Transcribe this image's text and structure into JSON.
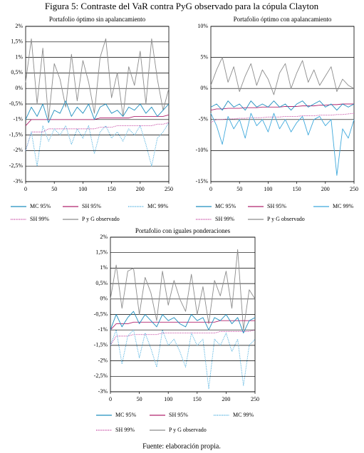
{
  "title": "Figura 5: Contraste del VaR contra PyG observado para la cópula Clayton",
  "source": "Fuente: elaboración propia.",
  "chart_data": [
    {
      "type": "line",
      "title": "Portafolio óptimo sin apalancamiento",
      "grid": true,
      "x": [
        0,
        10,
        20,
        30,
        40,
        50,
        60,
        70,
        80,
        90,
        100,
        110,
        120,
        130,
        140,
        150,
        160,
        170,
        180,
        190,
        200,
        210,
        220,
        230,
        240,
        250
      ],
      "xlim": [
        0,
        250
      ],
      "xticks": [
        0,
        50,
        100,
        150,
        200,
        250
      ],
      "ylim": [
        -3,
        2
      ],
      "yticks": [
        {
          "value": 2,
          "label": "2%"
        },
        {
          "value": 1.5,
          "label": "1,5%"
        },
        {
          "value": 1,
          "label": "1%"
        },
        {
          "value": 0.5,
          "label": "0,5%"
        },
        {
          "value": 0,
          "label": "0%"
        },
        {
          "value": -0.5,
          "label": "-0,5%"
        },
        {
          "value": -1,
          "label": "-1%"
        },
        {
          "value": -1.5,
          "label": "-1,5%"
        },
        {
          "value": -2,
          "label": "-2%"
        },
        {
          "value": -2.5,
          "label": "-2,5%"
        },
        {
          "value": -3,
          "label": "-3%"
        }
      ],
      "series": [
        {
          "name": "MC 95%",
          "color": "#1f8fbf",
          "values": [
            -1.0,
            -0.6,
            -0.9,
            -0.5,
            -1.1,
            -0.7,
            -0.8,
            -0.4,
            -0.9,
            -0.6,
            -0.8,
            -0.5,
            -1.0,
            -0.6,
            -0.5,
            -0.8,
            -0.7,
            -0.9,
            -0.6,
            -0.7,
            -0.5,
            -0.8,
            -0.6,
            -0.9,
            -0.7,
            -0.5
          ]
        },
        {
          "name": "SH 95%",
          "color": "#b0246e",
          "values": [
            -1.2,
            -1.0,
            -1.0,
            -1.0,
            -1.0,
            -1.0,
            -1.0,
            -1.0,
            -1.0,
            -1.0,
            -1.0,
            -1.0,
            -1.0,
            -0.95,
            -0.95,
            -0.95,
            -0.95,
            -0.95,
            -0.95,
            -0.9,
            -0.9,
            -0.9,
            -0.9,
            -0.9,
            -0.9,
            -0.85
          ]
        },
        {
          "name": "MC 99%",
          "color": "#3fa9dc",
          "style": "dotted",
          "values": [
            -2.0,
            -1.4,
            -2.5,
            -1.2,
            -1.7,
            -1.3,
            -1.5,
            -1.2,
            -1.8,
            -1.3,
            -1.6,
            -1.2,
            -2.1,
            -1.4,
            -1.2,
            -1.6,
            -1.4,
            -1.7,
            -1.3,
            -1.5,
            -1.2,
            -1.8,
            -2.5,
            -1.6,
            -1.4,
            -1.1
          ]
        },
        {
          "name": "SH 99%",
          "color": "#c0389a",
          "style": "dotted",
          "values": [
            -2.0,
            -1.4,
            -1.4,
            -1.4,
            -1.3,
            -1.3,
            -1.3,
            -1.3,
            -1.3,
            -1.3,
            -1.3,
            -1.3,
            -1.3,
            -1.25,
            -1.25,
            -1.25,
            -1.2,
            -1.2,
            -1.2,
            -1.2,
            -1.2,
            -1.2,
            -1.2,
            -1.15,
            -1.15,
            -1.1
          ]
        },
        {
          "name": "P y G observado",
          "color": "#8c8c8c",
          "values": [
            0.2,
            1.6,
            -0.5,
            1.3,
            -1.0,
            0.8,
            0.3,
            -0.6,
            1.1,
            -0.4,
            0.9,
            0.2,
            -0.8,
            1.0,
            1.6,
            -0.3,
            0.5,
            -0.9,
            0.7,
            0.1,
            1.2,
            -0.5,
            1.6,
            0.3,
            -0.7,
            0.0
          ]
        }
      ]
    },
    {
      "type": "line",
      "title": "Portafolio óptimo con apalancamiento",
      "grid": true,
      "x": [
        0,
        10,
        20,
        30,
        40,
        50,
        60,
        70,
        80,
        90,
        100,
        110,
        120,
        130,
        140,
        150,
        160,
        170,
        180,
        190,
        200,
        210,
        220,
        230,
        240,
        250
      ],
      "xlim": [
        0,
        250
      ],
      "xticks": [
        0,
        50,
        100,
        150,
        200,
        250
      ],
      "ylim": [
        -15,
        10
      ],
      "yticks": [
        {
          "value": 10,
          "label": "10%"
        },
        {
          "value": 5,
          "label": "5%"
        },
        {
          "value": 0,
          "label": "0%"
        },
        {
          "value": -5,
          "label": "-5%"
        },
        {
          "value": -10,
          "label": "-10%"
        },
        {
          "value": -15,
          "label": "-15%"
        }
      ],
      "series": [
        {
          "name": "MC 95%",
          "color": "#1f8fbf",
          "values": [
            -3.0,
            -2.5,
            -3.5,
            -2.0,
            -3.0,
            -2.5,
            -3.5,
            -2.0,
            -3.0,
            -2.5,
            -3.0,
            -2.0,
            -3.0,
            -2.5,
            -3.5,
            -2.5,
            -2.0,
            -3.0,
            -2.5,
            -2.0,
            -3.0,
            -2.5,
            -3.5,
            -2.5,
            -3.0,
            -2.5
          ]
        },
        {
          "name": "SH 95%",
          "color": "#b0246e",
          "values": [
            -3.5,
            -3.3,
            -3.3,
            -3.2,
            -3.2,
            -3.2,
            -3.1,
            -3.1,
            -3.1,
            -3.0,
            -3.0,
            -3.0,
            -3.0,
            -2.9,
            -2.9,
            -2.9,
            -2.8,
            -2.8,
            -2.8,
            -2.7,
            -2.7,
            -2.6,
            -2.6,
            -2.5,
            -2.5,
            -2.5
          ]
        },
        {
          "name": "MC 99%",
          "color": "#3fa9dc",
          "values": [
            -4.0,
            -6.0,
            -9.0,
            -4.5,
            -6.5,
            -5.0,
            -8.0,
            -4.0,
            -6.0,
            -5.0,
            -7.0,
            -4.0,
            -6.5,
            -5.0,
            -7.0,
            -5.5,
            -4.5,
            -7.5,
            -5.0,
            -4.5,
            -6.0,
            -5.0,
            -14.0,
            -6.5,
            -8.0,
            -5.0
          ]
        },
        {
          "name": "SH 99%",
          "color": "#c0389a",
          "style": "dotted",
          "values": [
            -5.5,
            -5.0,
            -5.0,
            -4.9,
            -4.9,
            -4.8,
            -4.8,
            -4.7,
            -4.7,
            -4.7,
            -4.6,
            -4.6,
            -4.6,
            -4.5,
            -4.5,
            -4.5,
            -4.4,
            -4.4,
            -4.4,
            -4.3,
            -4.3,
            -4.3,
            -4.2,
            -4.2,
            -4.1,
            -4.0
          ]
        },
        {
          "name": "P y G observado",
          "color": "#8c8c8c",
          "values": [
            0.5,
            3.0,
            5.0,
            1.0,
            3.5,
            -0.5,
            2.0,
            4.0,
            0.5,
            3.0,
            1.5,
            -1.0,
            2.5,
            4.0,
            0.0,
            2.5,
            4.5,
            1.0,
            3.0,
            0.5,
            2.0,
            3.5,
            -0.5,
            1.5,
            0.5,
            0.0
          ]
        }
      ]
    },
    {
      "type": "line",
      "title": "Portafolio con iguales ponderaciones",
      "grid": true,
      "x": [
        0,
        10,
        20,
        30,
        40,
        50,
        60,
        70,
        80,
        90,
        100,
        110,
        120,
        130,
        140,
        150,
        160,
        170,
        180,
        190,
        200,
        210,
        220,
        230,
        240,
        250
      ],
      "xlim": [
        0,
        250
      ],
      "xticks": [
        0,
        50,
        100,
        150,
        200,
        250
      ],
      "ylim": [
        -3,
        2
      ],
      "yticks": [
        {
          "value": 2,
          "label": "2%"
        },
        {
          "value": 1.5,
          "label": "1,5%"
        },
        {
          "value": 1,
          "label": "1%"
        },
        {
          "value": 0.5,
          "label": "0,5%"
        },
        {
          "value": 0,
          "label": "0%"
        },
        {
          "value": -0.5,
          "label": "-0,5%"
        },
        {
          "value": -1,
          "label": "-1%"
        },
        {
          "value": -1.5,
          "label": "-1,5%"
        },
        {
          "value": -2,
          "label": "-2%"
        },
        {
          "value": -2.5,
          "label": "-2,5%"
        },
        {
          "value": -3,
          "label": "-3%"
        }
      ],
      "series": [
        {
          "name": "MC 95%",
          "color": "#1f8fbf",
          "values": [
            -1.0,
            -0.5,
            -0.9,
            -0.6,
            -0.4,
            -0.8,
            -0.5,
            -0.7,
            -0.9,
            -0.5,
            -0.7,
            -0.6,
            -0.8,
            -0.9,
            -0.5,
            -0.7,
            -0.6,
            -1.0,
            -0.6,
            -0.7,
            -0.5,
            -0.8,
            -0.6,
            -1.1,
            -0.7,
            -0.6
          ]
        },
        {
          "name": "SH 95%",
          "color": "#b0246e",
          "values": [
            -1.0,
            -0.8,
            -0.8,
            -0.8,
            -0.75,
            -0.75,
            -0.75,
            -0.75,
            -0.75,
            -0.75,
            -0.75,
            -0.75,
            -0.75,
            -0.75,
            -0.75,
            -0.75,
            -0.75,
            -0.75,
            -0.75,
            -0.7,
            -0.7,
            -0.7,
            -0.7,
            -0.7,
            -0.7,
            -0.7
          ]
        },
        {
          "name": "MC 99%",
          "color": "#3fa9dc",
          "style": "dotted",
          "values": [
            -1.5,
            -1.0,
            -2.1,
            -1.2,
            -1.0,
            -1.9,
            -1.1,
            -1.6,
            -2.2,
            -1.0,
            -1.5,
            -1.3,
            -1.7,
            -2.2,
            -1.1,
            -1.5,
            -1.3,
            -2.9,
            -1.3,
            -1.5,
            -1.1,
            -1.7,
            -1.3,
            -2.8,
            -1.5,
            -1.3
          ]
        },
        {
          "name": "SH 99%",
          "color": "#c0389a",
          "style": "dotted",
          "values": [
            -1.5,
            -1.2,
            -1.2,
            -1.2,
            -1.15,
            -1.15,
            -1.15,
            -1.15,
            -1.15,
            -1.1,
            -1.1,
            -1.1,
            -1.1,
            -1.1,
            -1.1,
            -1.1,
            -1.1,
            -1.1,
            -1.1,
            -1.05,
            -1.05,
            -1.05,
            -1.05,
            -1.05,
            -1.05,
            -1.0
          ]
        },
        {
          "name": "P y G observado",
          "color": "#8c8c8c",
          "values": [
            0.0,
            1.1,
            -0.3,
            0.9,
            1.0,
            -0.5,
            0.7,
            0.2,
            -0.7,
            0.9,
            -0.2,
            0.6,
            0.0,
            -0.4,
            0.8,
            -0.5,
            0.4,
            -0.8,
            0.6,
            0.1,
            0.9,
            -0.3,
            1.6,
            -1.0,
            0.3,
            0.0
          ]
        }
      ]
    }
  ]
}
